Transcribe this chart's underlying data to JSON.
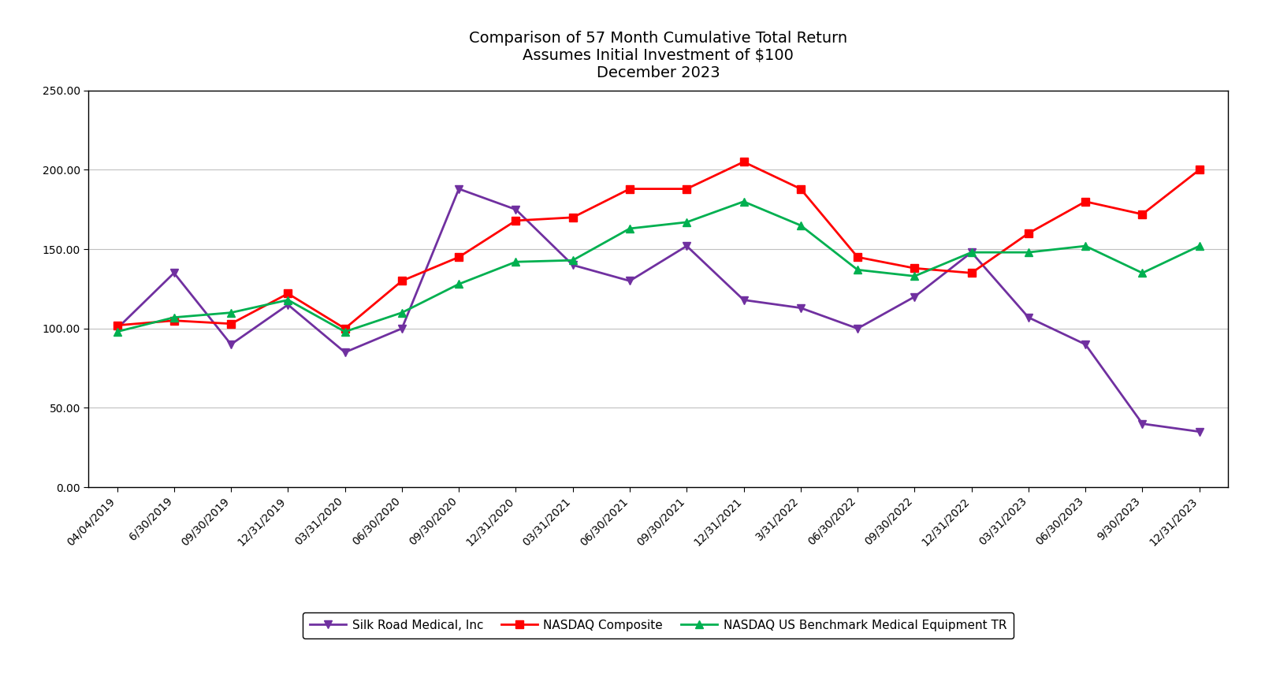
{
  "title": "Comparison of 57 Month Cumulative Total Return\nAssumes Initial Investment of $100\nDecember 2023",
  "x_labels": [
    "04/04/2019",
    "6/30/2019",
    "09/30/2019",
    "12/31/2019",
    "03/31/2020",
    "06/30/2020",
    "09/30/2020",
    "12/31/2020",
    "03/31/2021",
    "06/30/2021",
    "09/30/2021",
    "12/31/2021",
    "3/31/2022",
    "06/30/2022",
    "09/30/2022",
    "12/31/2022",
    "03/31/2023",
    "06/30/2023",
    "9/30/2023",
    "12/31/2023"
  ],
  "silk_road": [
    100.0,
    135.0,
    90.0,
    115.0,
    85.0,
    100.0,
    188.0,
    175.0,
    140.0,
    130.0,
    152.0,
    118.0,
    113.0,
    100.0,
    120.0,
    148.0,
    107.0,
    90.0,
    40.0,
    35.0
  ],
  "nasdaq_composite": [
    102.0,
    105.0,
    103.0,
    122.0,
    100.0,
    130.0,
    145.0,
    168.0,
    170.0,
    188.0,
    188.0,
    205.0,
    188.0,
    145.0,
    138.0,
    135.0,
    160.0,
    180.0,
    172.0,
    200.0
  ],
  "nasdaq_benchmark": [
    98.0,
    107.0,
    110.0,
    118.0,
    98.0,
    110.0,
    128.0,
    142.0,
    143.0,
    163.0,
    167.0,
    180.0,
    165.0,
    137.0,
    133.0,
    148.0,
    148.0,
    152.0,
    135.0,
    152.0
  ],
  "silk_road_color": "#7030A0",
  "nasdaq_composite_color": "#FF0000",
  "nasdaq_benchmark_color": "#00B050",
  "ylim": [
    0,
    250
  ],
  "yticks": [
    0.0,
    50.0,
    100.0,
    150.0,
    200.0,
    250.0
  ],
  "legend_labels": [
    "Silk Road Medical, Inc",
    "NASDAQ Composite",
    "NASDAQ US Benchmark Medical Equipment TR"
  ],
  "background_color": "#FFFFFF",
  "grid_color": "#C0C0C0",
  "title_fontsize": 14,
  "tick_fontsize": 10,
  "legend_fontsize": 11
}
